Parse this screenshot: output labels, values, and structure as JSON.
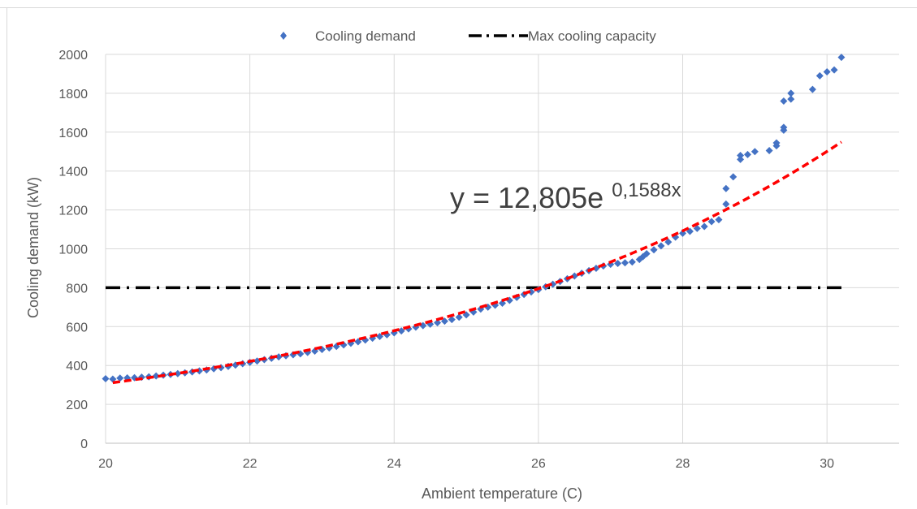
{
  "chart_data": {
    "type": "scatter",
    "title": "",
    "xlabel": "Ambient temperature (C)",
    "ylabel": "Cooling demand (kW)",
    "xlim": [
      20,
      31
    ],
    "ylim": [
      0,
      2000
    ],
    "x_ticks": [
      20,
      22,
      24,
      26,
      28,
      30
    ],
    "y_ticks": [
      0,
      200,
      400,
      600,
      800,
      1000,
      1200,
      1400,
      1600,
      1800,
      2000
    ],
    "grid": true,
    "legend_position": "top",
    "series": [
      {
        "name": "Cooling demand",
        "kind": "scatter",
        "marker": "diamond",
        "color": "#4472c4",
        "points": [
          [
            20.0,
            332
          ],
          [
            20.1,
            330
          ],
          [
            20.2,
            335
          ],
          [
            20.3,
            336
          ],
          [
            20.4,
            337
          ],
          [
            20.5,
            340
          ],
          [
            20.6,
            342
          ],
          [
            20.7,
            346
          ],
          [
            20.8,
            350
          ],
          [
            20.9,
            354
          ],
          [
            21.0,
            358
          ],
          [
            21.1,
            362
          ],
          [
            21.2,
            367
          ],
          [
            21.3,
            372
          ],
          [
            21.4,
            377
          ],
          [
            21.5,
            383
          ],
          [
            21.6,
            389
          ],
          [
            21.7,
            395
          ],
          [
            21.8,
            402
          ],
          [
            21.9,
            409
          ],
          [
            22.0,
            416
          ],
          [
            22.1,
            423
          ],
          [
            22.2,
            430
          ],
          [
            22.3,
            437
          ],
          [
            22.4,
            444
          ],
          [
            22.5,
            450
          ],
          [
            22.6,
            455
          ],
          [
            22.7,
            460
          ],
          [
            22.8,
            467
          ],
          [
            22.9,
            474
          ],
          [
            23.0,
            482
          ],
          [
            23.1,
            490
          ],
          [
            23.2,
            498
          ],
          [
            23.3,
            506
          ],
          [
            23.4,
            514
          ],
          [
            23.5,
            522
          ],
          [
            23.6,
            531
          ],
          [
            23.7,
            540
          ],
          [
            23.8,
            549
          ],
          [
            23.9,
            558
          ],
          [
            24.0,
            568
          ],
          [
            24.1,
            578
          ],
          [
            24.2,
            588
          ],
          [
            24.3,
            597
          ],
          [
            24.4,
            605
          ],
          [
            24.5,
            612
          ],
          [
            24.6,
            620
          ],
          [
            24.7,
            628
          ],
          [
            24.8,
            636
          ],
          [
            24.9,
            648
          ],
          [
            25.0,
            660
          ],
          [
            25.1,
            675
          ],
          [
            25.2,
            690
          ],
          [
            25.3,
            700
          ],
          [
            25.4,
            710
          ],
          [
            25.5,
            720
          ],
          [
            25.6,
            735
          ],
          [
            25.7,
            750
          ],
          [
            25.8,
            765
          ],
          [
            25.9,
            778
          ],
          [
            26.0,
            790
          ],
          [
            26.1,
            805
          ],
          [
            26.2,
            818
          ],
          [
            26.3,
            832
          ],
          [
            26.4,
            846
          ],
          [
            26.5,
            860
          ],
          [
            26.6,
            874
          ],
          [
            26.7,
            888
          ],
          [
            26.8,
            900
          ],
          [
            26.9,
            912
          ],
          [
            27.0,
            920
          ],
          [
            27.1,
            925
          ],
          [
            27.2,
            928
          ],
          [
            27.3,
            932
          ],
          [
            27.4,
            945
          ],
          [
            27.45,
            960
          ],
          [
            27.5,
            975
          ],
          [
            27.6,
            995
          ],
          [
            27.7,
            1015
          ],
          [
            27.8,
            1035
          ],
          [
            27.9,
            1060
          ],
          [
            28.0,
            1080
          ],
          [
            28.1,
            1090
          ],
          [
            28.2,
            1105
          ],
          [
            28.3,
            1115
          ],
          [
            28.4,
            1140
          ],
          [
            28.5,
            1150
          ],
          [
            28.6,
            1230
          ],
          [
            28.6,
            1310
          ],
          [
            28.7,
            1370
          ],
          [
            28.8,
            1460
          ],
          [
            28.8,
            1480
          ],
          [
            28.9,
            1485
          ],
          [
            29.0,
            1500
          ],
          [
            29.2,
            1505
          ],
          [
            29.3,
            1530
          ],
          [
            29.3,
            1545
          ],
          [
            29.4,
            1610
          ],
          [
            29.4,
            1625
          ],
          [
            29.4,
            1760
          ],
          [
            29.5,
            1770
          ],
          [
            29.5,
            1800
          ],
          [
            29.8,
            1820
          ],
          [
            29.9,
            1890
          ],
          [
            30.0,
            1910
          ],
          [
            30.1,
            1920
          ],
          [
            30.2,
            1985
          ]
        ]
      },
      {
        "name": "Max cooling capacity",
        "kind": "line",
        "style": "dash-dot",
        "color": "#000000",
        "points": [
          [
            20,
            800
          ],
          [
            31,
            800
          ]
        ]
      }
    ],
    "trendline": {
      "type": "exponential",
      "color": "#ff0000",
      "style": "dashed",
      "a": 12.805,
      "b": 0.1588,
      "x_range": [
        20.1,
        30.2
      ],
      "label_prefix": "y = 12,805e",
      "label_exponent": "0,1588x"
    }
  }
}
